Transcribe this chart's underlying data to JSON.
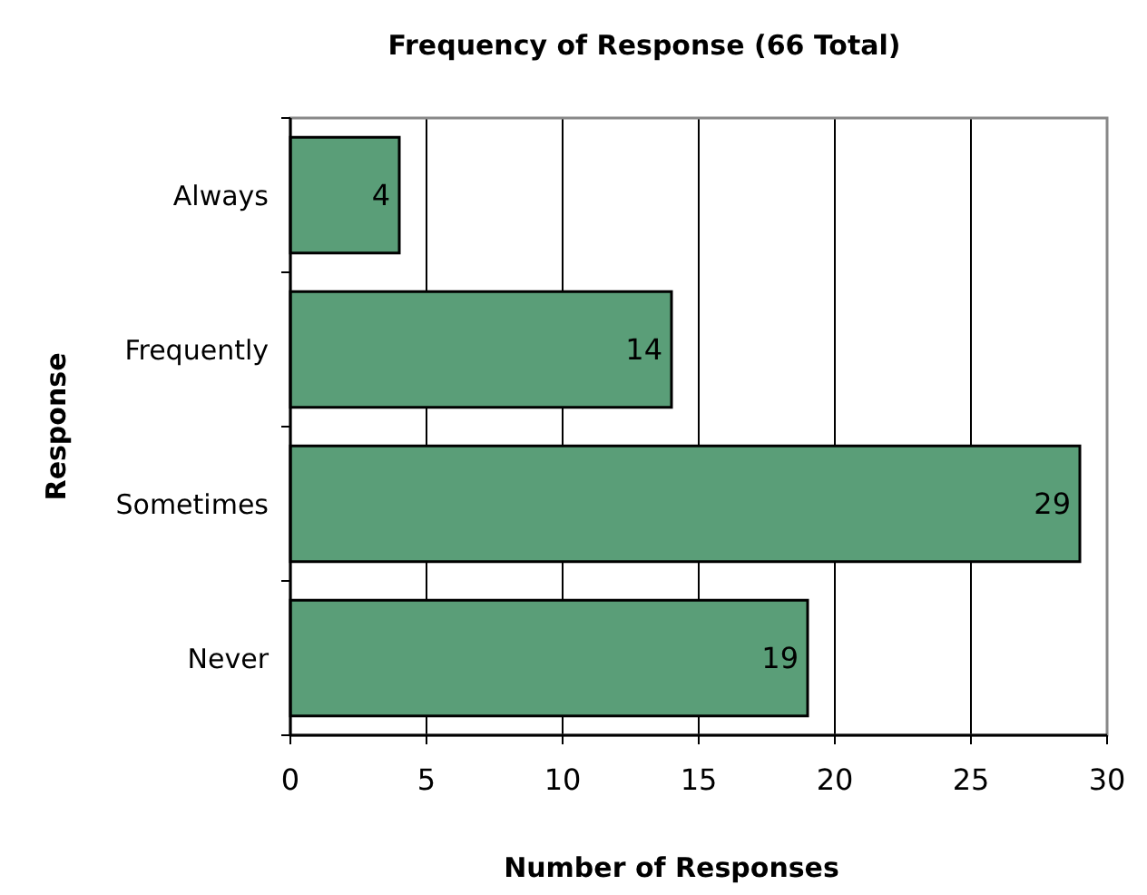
{
  "chart_data": {
    "type": "bar",
    "orientation": "horizontal",
    "title": "Frequency of Response (66 Total)",
    "xlabel": "Number of Responses",
    "ylabel": "Response",
    "categories": [
      "Always",
      "Frequently",
      "Sometimes",
      "Never"
    ],
    "values": [
      4,
      14,
      29,
      19
    ],
    "color": "#5a9e78",
    "data_labels": true,
    "xlim": [
      0,
      30
    ],
    "xticks": [
      0,
      5,
      10,
      15,
      20,
      25,
      30
    ],
    "grid": "x"
  }
}
